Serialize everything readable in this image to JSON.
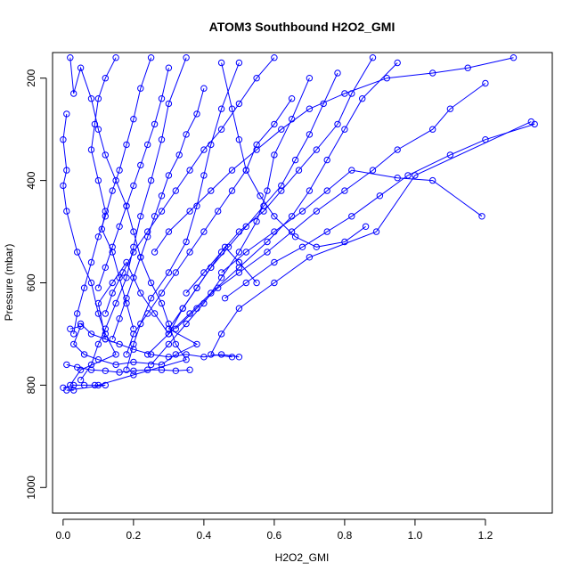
{
  "chart_data": {
    "type": "line",
    "title": "ATOM3 Southbound H2O2_GMI",
    "xlabel": "H2O2_GMI",
    "ylabel": "Pressure (mbar)",
    "xlim": [
      -0.03,
      1.39
    ],
    "ylim": [
      1050,
      150
    ],
    "y_reversed": true,
    "x_ticks": [
      0.0,
      0.2,
      0.4,
      0.6,
      0.8,
      1.0,
      1.2
    ],
    "x_tick_labels": [
      "0.0",
      "0.2",
      "0.4",
      "0.6",
      "0.8",
      "1.0",
      "1.2"
    ],
    "y_ticks": [
      200,
      400,
      600,
      800,
      1000
    ],
    "y_tick_labels": [
      "200",
      "400",
      "600",
      "800",
      "1000"
    ],
    "grid": false,
    "legend": "none",
    "marker": "open-circle",
    "series_color": "#0000ff",
    "series": [
      {
        "points": [
          [
            0.02,
            160
          ],
          [
            0.03,
            230
          ],
          [
            0.05,
            180
          ],
          [
            0.08,
            240
          ],
          [
            0.1,
            300
          ],
          [
            0.12,
            350
          ],
          [
            0.15,
            400
          ],
          [
            0.18,
            450
          ],
          [
            0.2,
            500
          ],
          [
            0.22,
            550
          ],
          [
            0.25,
            600
          ],
          [
            0.28,
            640
          ],
          [
            0.3,
            680
          ],
          [
            0.32,
            720
          ],
          [
            0.35,
            750
          ],
          [
            0.2,
            780
          ],
          [
            0.1,
            800
          ]
        ]
      },
      {
        "points": [
          [
            0.01,
            270
          ],
          [
            0.0,
            320
          ],
          [
            0.01,
            380
          ],
          [
            0.0,
            410
          ],
          [
            0.01,
            460
          ],
          [
            0.04,
            540
          ],
          [
            0.08,
            600
          ],
          [
            0.1,
            660
          ],
          [
            0.12,
            700
          ],
          [
            0.15,
            740
          ],
          [
            0.05,
            770
          ],
          [
            0.02,
            800
          ]
        ]
      },
      {
        "points": [
          [
            0.35,
            160
          ],
          [
            0.3,
            250
          ],
          [
            0.28,
            320
          ],
          [
            0.25,
            400
          ],
          [
            0.22,
            470
          ],
          [
            0.2,
            530
          ],
          [
            0.18,
            590
          ],
          [
            0.15,
            640
          ],
          [
            0.12,
            690
          ],
          [
            0.1,
            720
          ],
          [
            0.08,
            760
          ],
          [
            0.05,
            790
          ]
        ]
      },
      {
        "points": [
          [
            0.5,
            170
          ],
          [
            0.45,
            260
          ],
          [
            0.42,
            330
          ],
          [
            0.4,
            390
          ],
          [
            0.38,
            450
          ],
          [
            0.35,
            520
          ],
          [
            0.3,
            580
          ],
          [
            0.25,
            630
          ],
          [
            0.22,
            680
          ],
          [
            0.2,
            720
          ],
          [
            0.18,
            770
          ]
        ]
      },
      {
        "points": [
          [
            0.7,
            200
          ],
          [
            0.65,
            280
          ],
          [
            0.6,
            350
          ],
          [
            0.58,
            420
          ],
          [
            0.55,
            480
          ],
          [
            0.5,
            540
          ],
          [
            0.45,
            590
          ],
          [
            0.4,
            640
          ],
          [
            0.35,
            680
          ],
          [
            0.3,
            720
          ],
          [
            0.25,
            760
          ]
        ]
      },
      {
        "points": [
          [
            0.95,
            170
          ],
          [
            0.85,
            240
          ],
          [
            0.8,
            300
          ],
          [
            0.75,
            360
          ],
          [
            0.7,
            420
          ],
          [
            0.65,
            470
          ],
          [
            0.58,
            520
          ],
          [
            0.5,
            570
          ],
          [
            0.42,
            620
          ],
          [
            0.36,
            660
          ],
          [
            0.3,
            700
          ],
          [
            0.24,
            740
          ]
        ]
      },
      {
        "points": [
          [
            1.2,
            210
          ],
          [
            1.1,
            260
          ],
          [
            1.05,
            300
          ],
          [
            0.95,
            340
          ],
          [
            0.88,
            380
          ],
          [
            0.8,
            420
          ],
          [
            0.72,
            460
          ],
          [
            0.65,
            500
          ],
          [
            0.58,
            540
          ],
          [
            0.5,
            580
          ],
          [
            0.44,
            610
          ],
          [
            0.38,
            650
          ],
          [
            0.32,
            690
          ]
        ]
      },
      {
        "points": [
          [
            1.34,
            290
          ],
          [
            1.2,
            320
          ],
          [
            1.1,
            350
          ],
          [
            0.98,
            390
          ],
          [
            0.9,
            430
          ],
          [
            0.82,
            470
          ],
          [
            0.75,
            500
          ],
          [
            0.68,
            530
          ],
          [
            0.6,
            560
          ],
          [
            0.52,
            600
          ],
          [
            0.46,
            630
          ]
        ]
      },
      {
        "points": [
          [
            1.33,
            285
          ],
          [
            1.0,
            390
          ],
          [
            0.89,
            500
          ],
          [
            0.7,
            550
          ],
          [
            0.6,
            600
          ],
          [
            0.5,
            650
          ],
          [
            0.45,
            700
          ],
          [
            0.42,
            740
          ],
          [
            0.48,
            745
          ]
        ]
      },
      {
        "points": [
          [
            1.19,
            470
          ],
          [
            1.05,
            400
          ],
          [
            0.95,
            395
          ],
          [
            0.82,
            380
          ],
          [
            0.75,
            420
          ],
          [
            0.68,
            460
          ],
          [
            0.6,
            500
          ],
          [
            0.52,
            540
          ],
          [
            0.45,
            580
          ]
        ]
      },
      {
        "points": [
          [
            1.28,
            160
          ],
          [
            1.15,
            180
          ],
          [
            1.05,
            190
          ],
          [
            0.92,
            200
          ],
          [
            0.8,
            230
          ],
          [
            0.7,
            260
          ],
          [
            0.62,
            300
          ],
          [
            0.55,
            340
          ],
          [
            0.48,
            380
          ],
          [
            0.42,
            420
          ],
          [
            0.36,
            460
          ],
          [
            0.3,
            500
          ],
          [
            0.26,
            540
          ]
        ]
      },
      {
        "points": [
          [
            0.6,
            160
          ],
          [
            0.55,
            200
          ],
          [
            0.5,
            250
          ],
          [
            0.45,
            300
          ],
          [
            0.4,
            340
          ],
          [
            0.36,
            380
          ],
          [
            0.32,
            420
          ],
          [
            0.28,
            460
          ],
          [
            0.24,
            500
          ],
          [
            0.2,
            540
          ],
          [
            0.17,
            580
          ],
          [
            0.14,
            620
          ],
          [
            0.12,
            660
          ]
        ]
      },
      {
        "points": [
          [
            0.25,
            160
          ],
          [
            0.22,
            220
          ],
          [
            0.2,
            280
          ],
          [
            0.18,
            330
          ],
          [
            0.16,
            380
          ],
          [
            0.14,
            420
          ],
          [
            0.12,
            470
          ],
          [
            0.1,
            510
          ],
          [
            0.08,
            560
          ],
          [
            0.06,
            610
          ],
          [
            0.04,
            660
          ],
          [
            0.03,
            700
          ]
        ]
      },
      {
        "points": [
          [
            0.15,
            160
          ],
          [
            0.12,
            200
          ],
          [
            0.1,
            240
          ],
          [
            0.09,
            290
          ],
          [
            0.08,
            340
          ],
          [
            0.1,
            400
          ],
          [
            0.12,
            460
          ],
          [
            0.11,
            495
          ],
          [
            0.14,
            540
          ],
          [
            0.16,
            590
          ],
          [
            0.18,
            640
          ],
          [
            0.2,
            690
          ]
        ]
      },
      {
        "points": [
          [
            0.4,
            220
          ],
          [
            0.38,
            270
          ],
          [
            0.35,
            310
          ],
          [
            0.33,
            350
          ],
          [
            0.3,
            390
          ],
          [
            0.28,
            430
          ],
          [
            0.26,
            470
          ],
          [
            0.24,
            510
          ],
          [
            0.22,
            550
          ],
          [
            0.2,
            590
          ],
          [
            0.18,
            630
          ],
          [
            0.16,
            670
          ],
          [
            0.14,
            710
          ]
        ]
      },
      {
        "points": [
          [
            0.78,
            190
          ],
          [
            0.74,
            250
          ],
          [
            0.7,
            310
          ],
          [
            0.66,
            360
          ],
          [
            0.62,
            410
          ],
          [
            0.57,
            450
          ],
          [
            0.52,
            490
          ],
          [
            0.47,
            530
          ],
          [
            0.42,
            570
          ],
          [
            0.38,
            610
          ],
          [
            0.34,
            650
          ],
          [
            0.3,
            690
          ]
        ]
      },
      {
        "points": [
          [
            0.88,
            160
          ],
          [
            0.82,
            230
          ],
          [
            0.78,
            290
          ],
          [
            0.72,
            340
          ],
          [
            0.67,
            380
          ],
          [
            0.62,
            420
          ],
          [
            0.57,
            460
          ],
          [
            0.5,
            500
          ],
          [
            0.45,
            540
          ],
          [
            0.4,
            580
          ],
          [
            0.35,
            620
          ]
        ]
      },
      {
        "points": [
          [
            0.05,
            680
          ],
          [
            0.08,
            700
          ],
          [
            0.12,
            710
          ],
          [
            0.16,
            720
          ],
          [
            0.2,
            730
          ],
          [
            0.25,
            740
          ],
          [
            0.3,
            745
          ],
          [
            0.35,
            740
          ],
          [
            0.4,
            745
          ],
          [
            0.45,
            740
          ],
          [
            0.5,
            745
          ]
        ]
      },
      {
        "points": [
          [
            0.01,
            760
          ],
          [
            0.04,
            765
          ],
          [
            0.08,
            770
          ],
          [
            0.12,
            772
          ],
          [
            0.16,
            775
          ],
          [
            0.2,
            772
          ],
          [
            0.24,
            770
          ],
          [
            0.28,
            770
          ],
          [
            0.32,
            772
          ],
          [
            0.36,
            770
          ]
        ]
      },
      {
        "points": [
          [
            0.0,
            805
          ],
          [
            0.03,
            800
          ],
          [
            0.06,
            800
          ],
          [
            0.09,
            800
          ],
          [
            0.12,
            800
          ],
          [
            0.01,
            810
          ],
          [
            0.03,
            810
          ]
        ]
      },
      {
        "points": [
          [
            0.02,
            690
          ],
          [
            0.05,
            685
          ],
          [
            0.03,
            720
          ],
          [
            0.06,
            740
          ],
          [
            0.1,
            750
          ],
          [
            0.15,
            760
          ],
          [
            0.2,
            755
          ],
          [
            0.28,
            760
          ],
          [
            0.32,
            740
          ],
          [
            0.38,
            720
          ],
          [
            0.3,
            690
          ]
        ]
      },
      {
        "points": [
          [
            0.12,
            710
          ],
          [
            0.1,
            640
          ],
          [
            0.14,
            600
          ],
          [
            0.18,
            560
          ],
          [
            0.22,
            620
          ],
          [
            0.26,
            660
          ],
          [
            0.3,
            700
          ],
          [
            0.34,
            650
          ],
          [
            0.38,
            610
          ],
          [
            0.42,
            570
          ],
          [
            0.46,
            530
          ],
          [
            0.5,
            560
          ],
          [
            0.55,
            600
          ]
        ]
      },
      {
        "points": [
          [
            0.45,
            170
          ],
          [
            0.48,
            260
          ],
          [
            0.5,
            320
          ],
          [
            0.52,
            380
          ],
          [
            0.56,
            430
          ],
          [
            0.6,
            470
          ],
          [
            0.66,
            510
          ],
          [
            0.72,
            530
          ],
          [
            0.8,
            520
          ],
          [
            0.86,
            490
          ]
        ]
      },
      {
        "points": [
          [
            0.3,
            180
          ],
          [
            0.28,
            240
          ],
          [
            0.26,
            290
          ],
          [
            0.24,
            330
          ],
          [
            0.22,
            370
          ],
          [
            0.2,
            410
          ],
          [
            0.18,
            450
          ],
          [
            0.16,
            490
          ],
          [
            0.14,
            530
          ],
          [
            0.12,
            570
          ],
          [
            0.1,
            610
          ]
        ]
      },
      {
        "points": [
          [
            0.65,
            240
          ],
          [
            0.6,
            290
          ],
          [
            0.55,
            330
          ],
          [
            0.52,
            380
          ],
          [
            0.48,
            420
          ],
          [
            0.44,
            460
          ],
          [
            0.4,
            500
          ],
          [
            0.36,
            540
          ],
          [
            0.32,
            580
          ],
          [
            0.28,
            620
          ],
          [
            0.24,
            660
          ],
          [
            0.2,
            700
          ],
          [
            0.18,
            740
          ]
        ]
      }
    ]
  }
}
